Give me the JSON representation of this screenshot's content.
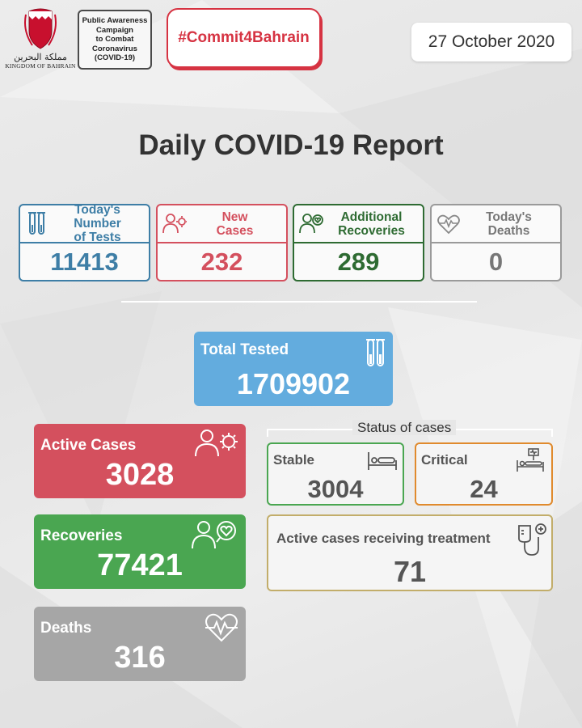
{
  "header": {
    "emblem_arabic": "مملكة البحرين",
    "emblem_english": "KINGDOM OF BAHRAIN",
    "campaign_lines": [
      "Public Awareness",
      "Campaign",
      "to Combat",
      "Coronavirus",
      "(COVID-19)"
    ],
    "hashtag": "#Commit4Bahrain",
    "date": "27 October 2020"
  },
  "title": "Daily COVID-19 Report",
  "daily": {
    "tests": {
      "label_1": "Today's Number",
      "label_2": "of Tests",
      "value": "11413",
      "color": "#3e7ea6",
      "icon": "test-tubes-icon"
    },
    "new_cases": {
      "label_1": "New",
      "label_2": "Cases",
      "value": "232",
      "color": "#d4505e",
      "icon": "person-virus-icon"
    },
    "recoveries": {
      "label_1": "Additional",
      "label_2": "Recoveries",
      "value": "289",
      "color": "#2e6b32",
      "icon": "person-heart-icon"
    },
    "deaths": {
      "label_1": "Today's",
      "label_2": "Deaths",
      "value": "0",
      "color": "#9a9a9a",
      "icon": "heartbeat-icon"
    }
  },
  "totals": {
    "tested": {
      "label": "Total Tested",
      "value": "1709902",
      "color": "#63acde",
      "icon": "test-tubes-icon"
    },
    "active": {
      "label": "Active Cases",
      "value": "3028",
      "color": "#d4505e",
      "icon": "person-virus-icon"
    },
    "recoveries": {
      "label": "Recoveries",
      "value": "77421",
      "color": "#4aa651",
      "icon": "person-heart-icon"
    },
    "deaths": {
      "label": "Deaths",
      "value": "316",
      "color": "#a6a6a6",
      "icon": "heartbeat-icon"
    }
  },
  "status": {
    "heading": "Status of cases",
    "stable": {
      "label": "Stable",
      "value": "3004",
      "color": "#4aa651",
      "icon": "bed-icon"
    },
    "critical": {
      "label": "Critical",
      "value": "24",
      "color": "#e08a2d",
      "icon": "icu-bed-icon"
    },
    "treatment": {
      "label": "Active cases receiving treatment",
      "value": "71",
      "color": "#c2ad6a",
      "icon": "iv-drip-icon"
    }
  }
}
